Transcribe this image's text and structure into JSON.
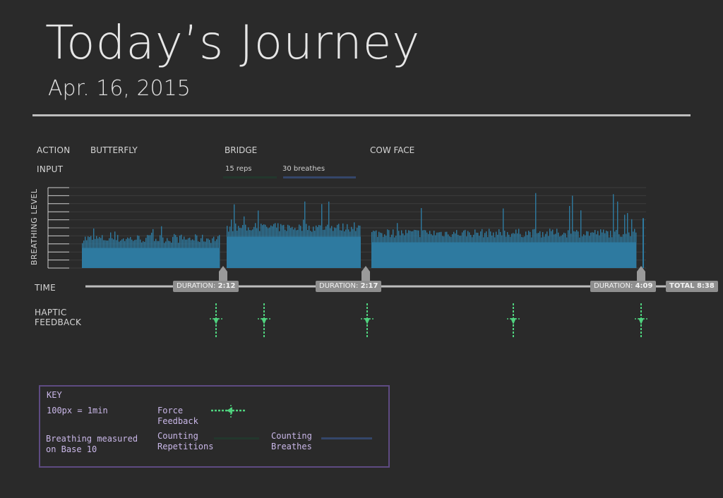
{
  "header": {
    "title": "Today’s Journey",
    "date": "Apr. 16, 2015"
  },
  "rows": {
    "action": "ACTION",
    "input": "INPUT",
    "breathing_level": "BREATHING LEVEL",
    "time": "TIME",
    "haptic": "HAPTIC\nFEEDBACK"
  },
  "actions": [
    "BUTTERFLY",
    "BRIDGE",
    "COW FACE"
  ],
  "inputs": [
    {
      "label": "15 reps",
      "color": "#23372d"
    },
    {
      "label": "30 breathes",
      "color": "#34466a"
    }
  ],
  "durations": [
    {
      "prefix": "DURATION:",
      "value": "2:12"
    },
    {
      "prefix": "DURATION:",
      "value": "2:17"
    },
    {
      "prefix": "DURATION:",
      "value": "4:09"
    }
  ],
  "total": "TOTAL 8:38",
  "colors": {
    "background": "#2a2a2a",
    "bars": "#2e7aa0",
    "haptic": "#4fd27e",
    "key_border": "#5e4b82",
    "key_text": "#c9b7e8",
    "timeline": "#bdbdbd",
    "pill": "#8e8e8e"
  },
  "key": {
    "title": "KEY",
    "scale": "100px = 1min",
    "force_feedback": "Force\nFeedback",
    "breathing_base": "Breathing measured\non Base 10",
    "counting_repetitions": "Counting\nRepetitions",
    "counting_breathes": "Counting\nBreathes"
  },
  "chart_data": {
    "type": "bar",
    "title": "",
    "xlabel": "TIME",
    "ylabel": "BREATHING LEVEL",
    "ylim": [
      0,
      10
    ],
    "grid": true,
    "segments": [
      {
        "action": "BUTTERFLY",
        "duration": "2:12",
        "start_min": 0,
        "end_min": 1.95,
        "baseline": 3.1,
        "peak": 5.3
      },
      {
        "action": "BRIDGE",
        "duration": "2:17",
        "start_min": 2.05,
        "end_min": 3.95,
        "baseline": 4.5,
        "peak": 9.5
      },
      {
        "action": "COW FACE",
        "duration": "4:09",
        "start_min": 4.1,
        "end_min": 7.85,
        "baseline": 3.8,
        "peak": 9.4
      }
    ],
    "section_markers_min": [
      2.0,
      4.02,
      7.92
    ],
    "haptic_feedback_min": [
      1.9,
      2.58,
      4.04,
      6.11,
      7.92
    ],
    "total": "8:38"
  }
}
